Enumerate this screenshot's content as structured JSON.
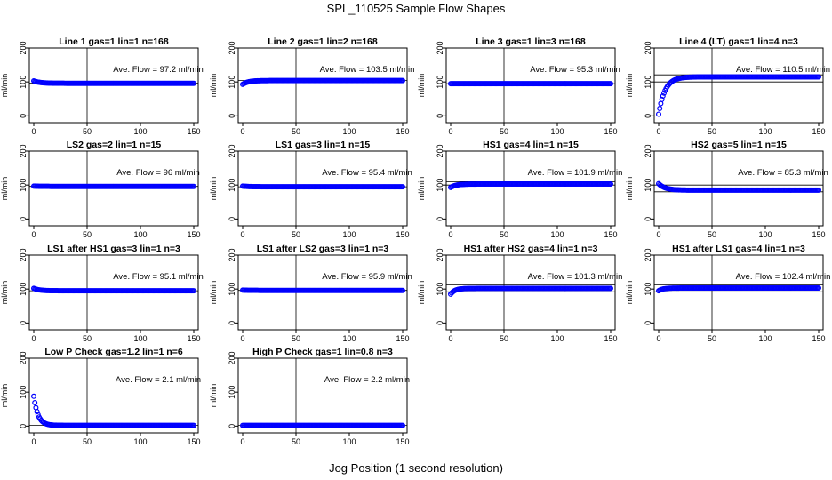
{
  "title": "SPL_110525  Sample Flow Shapes",
  "xlabel": "Jog Position (1 second resolution)",
  "ylabel": "ml/min",
  "colors": {
    "points": "#0000ff",
    "lines": "#000000",
    "background": "#ffffff"
  },
  "chart_data": [
    {
      "type": "scatter",
      "title": "Line 1 gas=1 lin=1 n=168",
      "annotation": "Ave. Flow = 97.2  ml/min",
      "shape": "decay",
      "start": 103,
      "end": 96,
      "tau": 6,
      "hline": 96,
      "xlim": [
        0,
        150
      ],
      "ylim": [
        -20,
        200
      ],
      "xticks": [
        0,
        50,
        100,
        150
      ],
      "yticks": [
        0,
        100,
        200
      ],
      "vline": 50
    },
    {
      "type": "scatter",
      "title": "Line 2 gas=1 lin=2 n=168",
      "annotation": "Ave. Flow = 103.5  ml/min",
      "shape": "decay",
      "start": 93,
      "end": 104,
      "tau": 5,
      "hline": 104,
      "xlim": [
        0,
        150
      ],
      "ylim": [
        -20,
        200
      ],
      "xticks": [
        0,
        50,
        100,
        150
      ],
      "yticks": [
        0,
        100,
        200
      ],
      "vline": 50
    },
    {
      "type": "scatter",
      "title": "Line 3 gas=1 lin=3 n=168",
      "annotation": "Ave. Flow = 95.3  ml/min",
      "shape": "decay",
      "start": 95,
      "end": 95,
      "tau": 5,
      "hline": 95,
      "xlim": [
        0,
        150
      ],
      "ylim": [
        -20,
        200
      ],
      "xticks": [
        0,
        50,
        100,
        150
      ],
      "yticks": [
        0,
        100,
        200
      ],
      "vline": 50
    },
    {
      "type": "scatter",
      "title": "Line 4 (LT) gas=1 lin=4 n=3",
      "annotation": "Ave. Flow = 110.5  ml/min",
      "shape": "decay",
      "start": 5,
      "end": 115,
      "tau": 6,
      "hline": 121,
      "hline2": 100,
      "xlim": [
        0,
        150
      ],
      "ylim": [
        -20,
        200
      ],
      "xticks": [
        0,
        50,
        100,
        150
      ],
      "yticks": [
        0,
        100,
        200
      ],
      "vline": 50
    },
    {
      "type": "scatter",
      "title": "LS2 gas=2 lin=1 n=15",
      "annotation": "Ave. Flow = 96  ml/min",
      "shape": "decay",
      "start": 97,
      "end": 96,
      "tau": 5,
      "hline": 96,
      "xlim": [
        0,
        150
      ],
      "ylim": [
        -20,
        200
      ],
      "xticks": [
        0,
        50,
        100,
        150
      ],
      "yticks": [
        0,
        100,
        200
      ],
      "vline": 50
    },
    {
      "type": "scatter",
      "title": "LS1 gas=3 lin=1 n=15",
      "annotation": "Ave. Flow = 95.4  ml/min",
      "shape": "decay",
      "start": 97,
      "end": 95,
      "tau": 5,
      "hline": 95,
      "xlim": [
        0,
        150
      ],
      "ylim": [
        -20,
        200
      ],
      "xticks": [
        0,
        50,
        100,
        150
      ],
      "yticks": [
        0,
        100,
        200
      ],
      "vline": 50
    },
    {
      "type": "scatter",
      "title": "HS1 gas=4 lin=1 n=15",
      "annotation": "Ave. Flow = 101.9  ml/min",
      "shape": "decay",
      "start": 93,
      "end": 103,
      "tau": 5,
      "hline": 110,
      "hline2": 100,
      "xlim": [
        0,
        150
      ],
      "ylim": [
        -20,
        200
      ],
      "xticks": [
        0,
        50,
        100,
        150
      ],
      "yticks": [
        0,
        100,
        200
      ],
      "vline": 50
    },
    {
      "type": "scatter",
      "title": "HS2 gas=5 lin=1 n=15",
      "annotation": "Ave. Flow = 85.3  ml/min",
      "shape": "decay",
      "start": 104,
      "end": 85,
      "tau": 6,
      "hline": 100,
      "hline2": 80,
      "xlim": [
        0,
        150
      ],
      "ylim": [
        -20,
        200
      ],
      "xticks": [
        0,
        50,
        100,
        150
      ],
      "yticks": [
        0,
        100,
        200
      ],
      "vline": 50
    },
    {
      "type": "scatter",
      "title": "LS1 after HS1 gas=3 lin=1 n=3",
      "annotation": "Ave. Flow = 95.1  ml/min",
      "shape": "decay",
      "start": 102,
      "end": 95,
      "tau": 5,
      "hline": 95,
      "xlim": [
        0,
        150
      ],
      "ylim": [
        -20,
        200
      ],
      "xticks": [
        0,
        50,
        100,
        150
      ],
      "yticks": [
        0,
        100,
        200
      ],
      "vline": 50
    },
    {
      "type": "scatter",
      "title": "LS1 after LS2 gas=3 lin=1 n=3",
      "annotation": "Ave. Flow = 95.9  ml/min",
      "shape": "decay",
      "start": 97,
      "end": 96,
      "tau": 5,
      "hline": 96,
      "xlim": [
        0,
        150
      ],
      "ylim": [
        -20,
        200
      ],
      "xticks": [
        0,
        50,
        100,
        150
      ],
      "yticks": [
        0,
        100,
        200
      ],
      "vline": 50
    },
    {
      "type": "scatter",
      "title": "HS1 after HS2 gas=4 lin=1 n=3",
      "annotation": "Ave. Flow = 101.3  ml/min",
      "shape": "decay",
      "start": 85,
      "end": 102,
      "tau": 4,
      "hline": 112,
      "hline2": 92,
      "xlim": [
        0,
        150
      ],
      "ylim": [
        -20,
        200
      ],
      "xticks": [
        0,
        50,
        100,
        150
      ],
      "yticks": [
        0,
        100,
        200
      ],
      "vline": 50
    },
    {
      "type": "scatter",
      "title": "HS1 after LS1 gas=4 lin=1 n=3",
      "annotation": "Ave. Flow = 102.4  ml/min",
      "shape": "decay",
      "start": 95,
      "end": 103,
      "tau": 4,
      "hline": 112,
      "hline2": 92,
      "xlim": [
        0,
        150
      ],
      "ylim": [
        -20,
        200
      ],
      "xticks": [
        0,
        50,
        100,
        150
      ],
      "yticks": [
        0,
        100,
        200
      ],
      "vline": 50
    },
    {
      "type": "scatter",
      "title": "Low P Check gas=1.2 lin=1 n=6",
      "annotation": "Ave. Flow = 2.1  ml/min",
      "shape": "decay",
      "start": 88,
      "end": 2,
      "tau": 4,
      "hline": 2,
      "xlim": [
        0,
        150
      ],
      "ylim": [
        -20,
        200
      ],
      "xticks": [
        0,
        50,
        100,
        150
      ],
      "yticks": [
        0,
        100,
        200
      ],
      "vline": 50
    },
    {
      "type": "scatter",
      "title": "High P Check gas=1 lin=0.8 n=3",
      "annotation": "Ave. Flow = 2.2  ml/min",
      "shape": "decay",
      "start": 2,
      "end": 2,
      "tau": 4,
      "hline": 2,
      "xlim": [
        0,
        150
      ],
      "ylim": [
        -20,
        200
      ],
      "xticks": [
        0,
        50,
        100,
        150
      ],
      "yticks": [
        0,
        100,
        200
      ],
      "vline": 50
    }
  ]
}
